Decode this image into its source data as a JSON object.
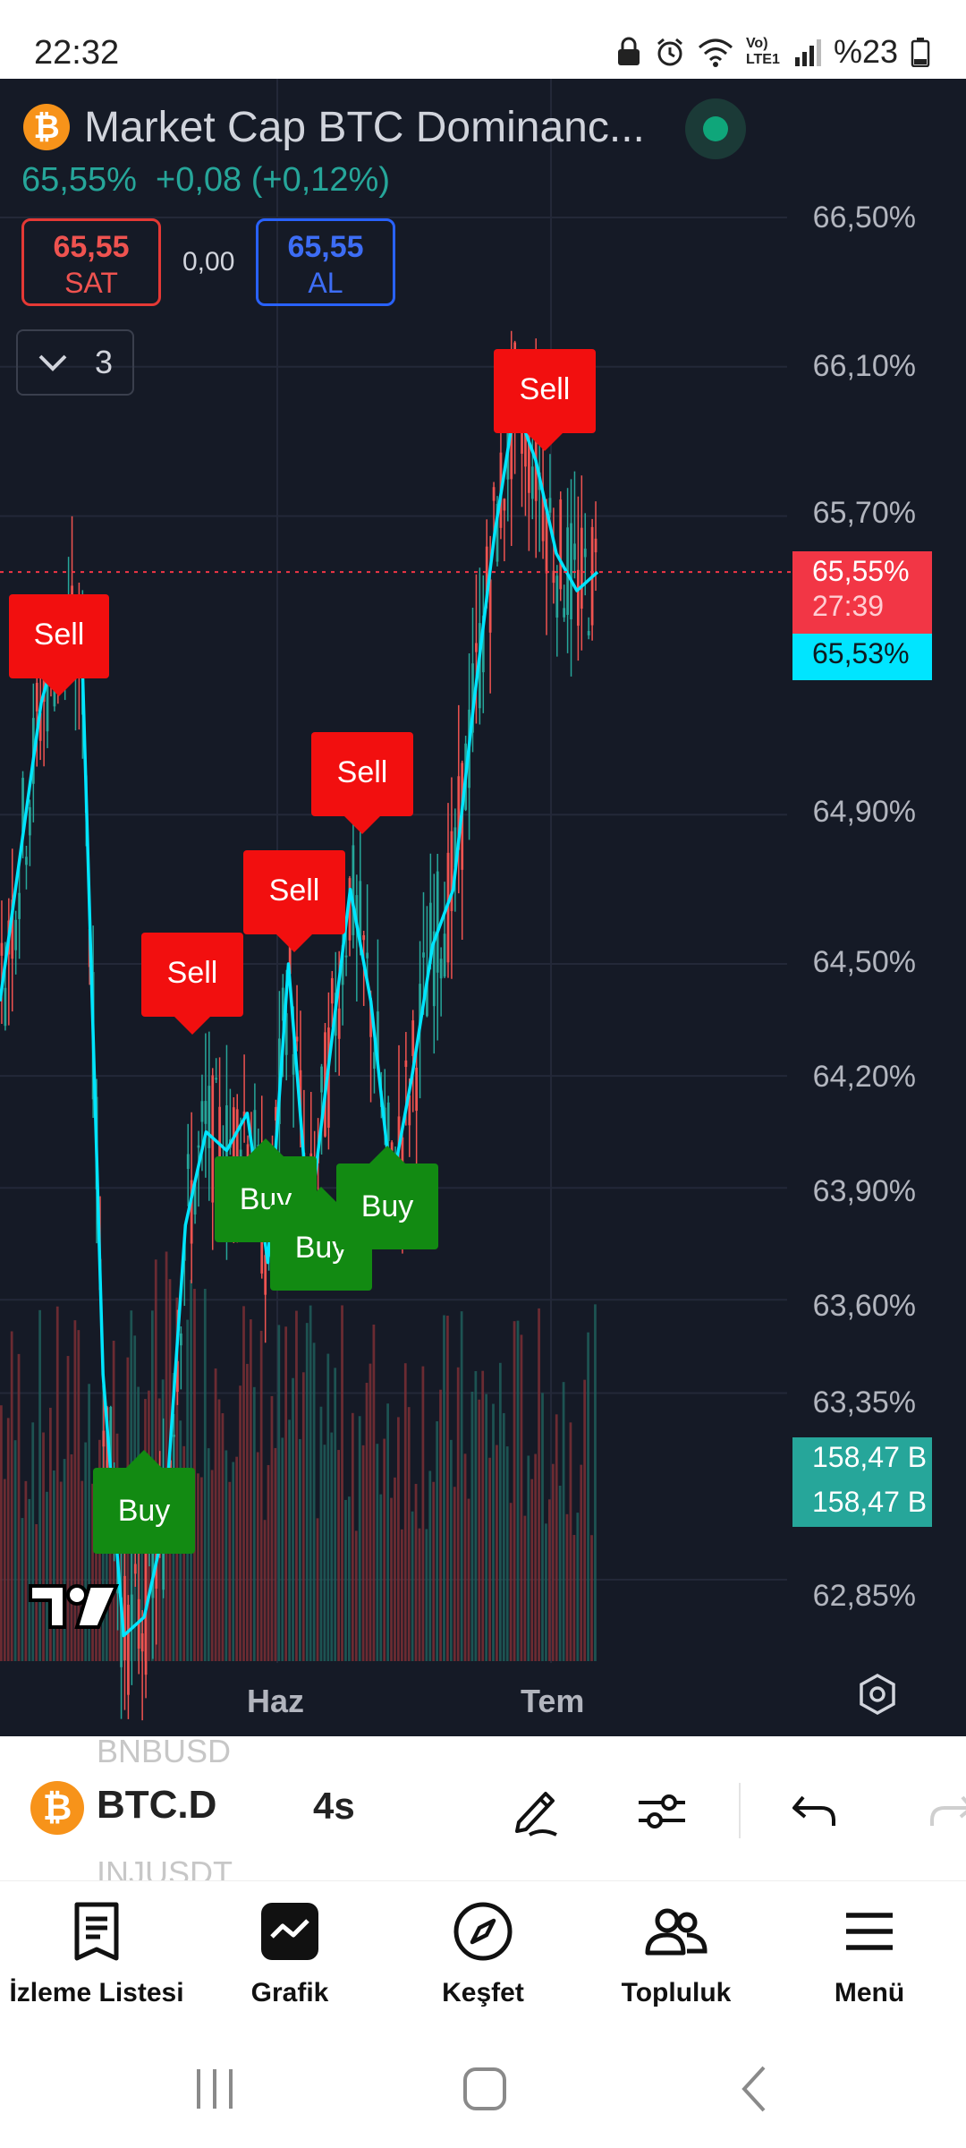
{
  "status_bar": {
    "time": "22:32",
    "icons": [
      "lock-icon",
      "alarm-icon",
      "wifi-icon",
      "volte-icon",
      "signal-icon"
    ],
    "volte_text": "Vo) LTE1",
    "battery": "%23"
  },
  "header": {
    "title": "Market Cap BTC Dominanc...",
    "logo_glyph": "₿",
    "last_price": "65,55%",
    "change": "+0,08 (+0,12%)"
  },
  "trade": {
    "sell_value": "65,55",
    "sell_label": "SAT",
    "spread": "0,00",
    "buy_value": "65,55",
    "buy_label": "AL"
  },
  "indicators": {
    "count": "3"
  },
  "price_axis": [
    "66,50%",
    "66,10%",
    "65,70%",
    "64,90%",
    "64,50%",
    "64,20%",
    "63,90%",
    "63,60%",
    "63,35%",
    "62,85%"
  ],
  "tags": {
    "price": "65,55%",
    "countdown": "27:39",
    "ma": "65,53%",
    "volume1": "158,47 B",
    "volume2": "158,47 B"
  },
  "signals": {
    "sell": [
      "Sell",
      "Sell",
      "Sell",
      "Sell",
      "Sell"
    ],
    "buy": [
      "Buy",
      "Buy",
      "Buy",
      "Buy"
    ]
  },
  "time_axis": [
    "Haz",
    "Tem"
  ],
  "toolbar": {
    "ghost_top": "BNBUSD",
    "symbol": "BTC.D",
    "interval": "4s",
    "ghost_bottom": "INJUSDT"
  },
  "bottom_nav": [
    {
      "label": "İzleme Listesi",
      "icon": "watchlist-icon"
    },
    {
      "label": "Grafik",
      "icon": "chart-icon"
    },
    {
      "label": "Keşfet",
      "icon": "compass-icon"
    },
    {
      "label": "Topluluk",
      "icon": "community-icon"
    },
    {
      "label": "Menü",
      "icon": "menu-icon"
    }
  ],
  "colors": {
    "chart_bg": "#151a26",
    "up": "#26a69a",
    "down": "#ef5350",
    "ma_line": "#00e5ff",
    "sell_signal": "#f20f0f",
    "buy_signal": "#128a12"
  },
  "chart_data": {
    "type": "candlestick",
    "symbol": "BTC.D",
    "interval": "4s",
    "y_axis_ticks": [
      66.5,
      66.1,
      65.7,
      64.9,
      64.5,
      64.2,
      63.9,
      63.6,
      63.35,
      62.85
    ],
    "x_axis_labels": [
      "Haz",
      "Tem"
    ],
    "last_price": 65.55,
    "moving_average_last": 65.53,
    "volume_last": "158,47 B",
    "ma_series_approx": [
      64.4,
      64.8,
      65.2,
      65.4,
      65.3,
      63.4,
      62.7,
      62.75,
      63.0,
      63.8,
      64.05,
      64.0,
      64.1,
      63.7,
      64.5,
      63.8,
      64.25,
      64.7,
      64.4,
      63.9,
      64.2,
      64.55,
      64.7,
      65.2,
      65.65,
      66.0,
      65.85,
      65.6,
      65.5,
      65.55
    ],
    "signals": [
      {
        "label": "Sell",
        "price": 65.3
      },
      {
        "label": "Buy",
        "price": 62.7
      },
      {
        "label": "Sell",
        "price": 64.0
      },
      {
        "label": "Buy",
        "price": 63.65
      },
      {
        "label": "Sell",
        "price": 64.45
      },
      {
        "label": "Buy",
        "price": 63.9
      },
      {
        "label": "Sell",
        "price": 64.75
      },
      {
        "label": "Buy",
        "price": 63.8
      },
      {
        "label": "Sell",
        "price": 65.95
      }
    ]
  }
}
